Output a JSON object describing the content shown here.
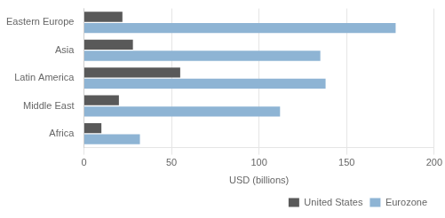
{
  "chart_data": {
    "type": "bar",
    "orientation": "horizontal",
    "categories": [
      "Eastern Europe",
      "Asia",
      "Latin America",
      "Middle East",
      "Africa"
    ],
    "series": [
      {
        "name": "United States",
        "color": "#595959",
        "values": [
          22,
          28,
          55,
          20,
          10
        ]
      },
      {
        "name": "Eurozone",
        "color": "#8eb4d4",
        "values": [
          178,
          135,
          138,
          112,
          32
        ]
      }
    ],
    "xlabel": "USD (billions)",
    "xlim": [
      0,
      200
    ],
    "xticks": [
      0,
      50,
      100,
      150,
      200
    ],
    "grid": true,
    "legend": "lower right"
  }
}
